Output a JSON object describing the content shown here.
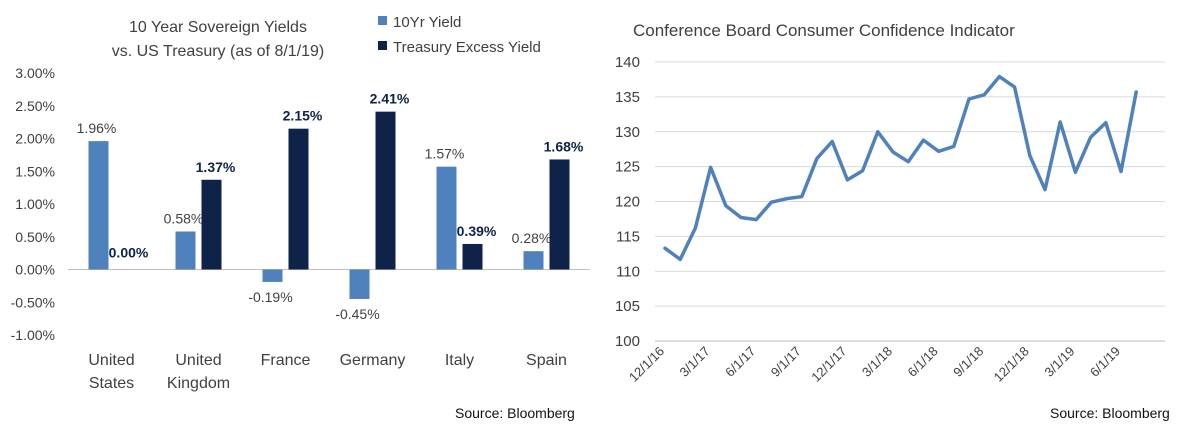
{
  "colors": {
    "yield10": "#4f81bd",
    "excess": "#0f2248",
    "line": "#4f81bd",
    "grid": "#d9d9d9",
    "text": "#404040"
  },
  "chart_data": [
    {
      "type": "bar",
      "title": "10 Year Sovereign Yields vs. US Treasury (as of 8/1/19)",
      "title_lines": [
        "10 Year Sovereign Yields",
        "vs. US Treasury (as of 8/1/19)"
      ],
      "categories": [
        "United States",
        "United Kingdom",
        "France",
        "Germany",
        "Italy",
        "Spain"
      ],
      "category_lines": [
        [
          "United",
          "States"
        ],
        [
          "United",
          "Kingdom"
        ],
        [
          "France"
        ],
        [
          "Germany"
        ],
        [
          "Italy"
        ],
        [
          "Spain"
        ]
      ],
      "series": [
        {
          "name": "10Yr Yield",
          "values": [
            1.96,
            0.58,
            -0.19,
            -0.45,
            1.57,
            0.28
          ],
          "labels": [
            "1.96%",
            "0.58%",
            "-0.19%",
            "-0.45%",
            "1.57%",
            "0.28%"
          ]
        },
        {
          "name": "Treasury Excess Yield",
          "values": [
            0.0,
            1.37,
            2.15,
            2.41,
            0.39,
            1.68
          ],
          "labels": [
            "0.00%",
            "1.37%",
            "2.15%",
            "2.41%",
            "0.39%",
            "1.68%"
          ]
        }
      ],
      "ylim": [
        -1.0,
        3.0
      ],
      "yticks": [
        3.0,
        2.5,
        2.0,
        1.5,
        1.0,
        0.5,
        0.0,
        -0.5,
        -1.0
      ],
      "ytick_labels": [
        "3.00%",
        "2.50%",
        "2.00%",
        "1.50%",
        "1.00%",
        "0.50%",
        "0.00%",
        "-0.50%",
        "-1.00%"
      ],
      "grid": false,
      "legend": "top-right",
      "source": "Source: Bloomberg"
    },
    {
      "type": "line",
      "title": "Conference Board Consumer Confidence Indicator",
      "series": [
        {
          "values": [
            113.3,
            111.7,
            116.2,
            124.9,
            119.4,
            117.7,
            117.4,
            119.9,
            120.4,
            120.7,
            126.2,
            128.6,
            123.1,
            124.4,
            130.0,
            127.1,
            125.7,
            128.8,
            127.2,
            127.9,
            134.7,
            135.3,
            137.9,
            136.4,
            126.6,
            121.7,
            131.4,
            124.2,
            129.2,
            131.3,
            124.3,
            135.7
          ]
        }
      ],
      "ylim": [
        100,
        140
      ],
      "yticks": [
        140,
        135,
        130,
        125,
        120,
        115,
        110,
        105,
        100
      ],
      "xtick_labels": [
        "12/1/16",
        "3/1/17",
        "6/1/17",
        "9/1/17",
        "12/1/17",
        "3/1/18",
        "6/1/18",
        "9/1/18",
        "12/1/18",
        "3/1/19",
        "6/1/19"
      ],
      "grid": true,
      "source": "Source: Bloomberg"
    }
  ]
}
